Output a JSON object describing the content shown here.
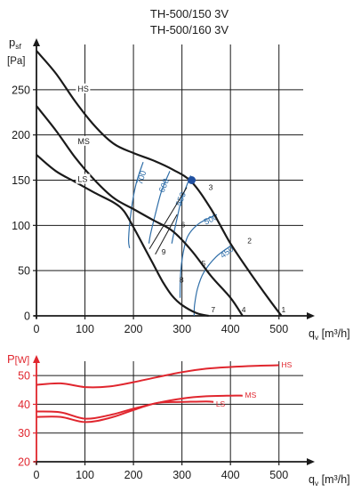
{
  "titles": [
    "TH-500/150 3V",
    "TH-500/160 3V"
  ],
  "colors": {
    "axis": "#1a1a1a",
    "grid": "#1a1a1a",
    "curve": "#1a1a1a",
    "iso_line": "#2f6ea8",
    "iso_label": "#2f6ea8",
    "power_curve": "#e0262e",
    "power_axis": "#e0262e",
    "point": "#1f4fa0"
  },
  "chart_data": [
    {
      "type": "line",
      "id": "pressure",
      "ylabel_main": "p",
      "ylabel_sub": "sf",
      "yunit": "[Pa]",
      "xlabel_main": "q",
      "xlabel_sub": "v",
      "xunit": " [m³/h]",
      "xlim": [
        0,
        550
      ],
      "ylim": [
        0,
        300
      ],
      "xticks": [
        0,
        100,
        200,
        300,
        400,
        500
      ],
      "yticks": [
        0,
        50,
        100,
        150,
        200,
        250
      ],
      "grid": true,
      "series": [
        {
          "name": "HS",
          "points": [
            [
              0,
              293
            ],
            [
              40,
              268
            ],
            [
              80,
              237
            ],
            [
              120,
              210
            ],
            [
              160,
              190
            ],
            [
              200,
              180
            ],
            [
              240,
              172
            ],
            [
              280,
              162
            ],
            [
              320,
              148
            ],
            [
              360,
              118
            ],
            [
              400,
              80
            ],
            [
              440,
              48
            ],
            [
              480,
              18
            ],
            [
              505,
              0
            ]
          ],
          "label_at": [
            85,
            250
          ]
        },
        {
          "name": "MS",
          "points": [
            [
              0,
              232
            ],
            [
              40,
              205
            ],
            [
              80,
              175
            ],
            [
              120,
              150
            ],
            [
              160,
              130
            ],
            [
              200,
              118
            ],
            [
              240,
              106
            ],
            [
              280,
              94
            ],
            [
              320,
              72
            ],
            [
              360,
              44
            ],
            [
              400,
              20
            ],
            [
              425,
              0
            ]
          ],
          "label_at": [
            85,
            192
          ]
        },
        {
          "name": "LS",
          "points": [
            [
              0,
              178
            ],
            [
              40,
              160
            ],
            [
              80,
              148
            ],
            [
              120,
              136
            ],
            [
              160,
              125
            ],
            [
              180,
              116
            ],
            [
              200,
              98
            ],
            [
              220,
              78
            ],
            [
              240,
              58
            ],
            [
              260,
              38
            ],
            [
              280,
              22
            ],
            [
              300,
              12
            ],
            [
              330,
              3
            ],
            [
              355,
              0
            ]
          ],
          "label_at": [
            85,
            150
          ]
        }
      ],
      "iso_lines": [
        {
          "label": "700",
          "points": [
            [
              220,
              170
            ],
            [
              205,
              145
            ],
            [
              195,
              115
            ],
            [
              190,
              85
            ],
            [
              192,
              75
            ]
          ],
          "label_at": [
            222,
            152
          ]
        },
        {
          "label": "600",
          "points": [
            [
              275,
              160
            ],
            [
              258,
              138
            ],
            [
              245,
              112
            ],
            [
              235,
              90
            ],
            [
              232,
              80
            ]
          ],
          "label_at": [
            268,
            143
          ]
        },
        {
          "label": "550",
          "points": [
            [
              318,
              155
            ],
            [
              300,
              130
            ],
            [
              290,
              108
            ],
            [
              282,
              88
            ],
            [
              279,
              80
            ]
          ],
          "label_at": [
            303,
            128
          ]
        },
        {
          "label": "500",
          "points": [
            [
              372,
              112
            ],
            [
              335,
              102
            ],
            [
              312,
              88
            ],
            [
              302,
              68
            ],
            [
              297,
              45
            ],
            [
              296,
              20
            ]
          ],
          "label_at": [
            362,
            104
          ]
        },
        {
          "label": "450",
          "points": [
            [
              402,
              78
            ],
            [
              370,
              65
            ],
            [
              345,
              48
            ],
            [
              332,
              30
            ],
            [
              326,
              12
            ],
            [
              325,
              0
            ]
          ],
          "label_at": [
            396,
            68
          ]
        }
      ],
      "diagonals": [
        {
          "points": [
            [
              310,
              142
            ],
            [
              233,
              74
            ]
          ]
        },
        {
          "points": [
            [
              290,
              112
            ],
            [
              245,
              68
            ]
          ]
        }
      ],
      "point_labels": [
        {
          "label": "1",
          "at": [
            505,
            4
          ]
        },
        {
          "label": "2",
          "at": [
            435,
            80
          ]
        },
        {
          "label": "3",
          "at": [
            355,
            139
          ]
        },
        {
          "label": "4",
          "at": [
            423,
            4
          ]
        },
        {
          "label": "5",
          "at": [
            340,
            55
          ]
        },
        {
          "label": "6",
          "at": [
            298,
            98
          ]
        },
        {
          "label": "7",
          "at": [
            360,
            4
          ]
        },
        {
          "label": "8",
          "at": [
            295,
            37
          ]
        },
        {
          "label": "9",
          "at": [
            258,
            68
          ]
        }
      ],
      "marker": {
        "x": 320,
        "y": 150
      }
    },
    {
      "type": "line",
      "id": "power",
      "ylabel_main": "P",
      "yunit": "[W]",
      "xlabel_main": "q",
      "xlabel_sub": "v",
      "xunit": " [m³/h]",
      "xlim": [
        0,
        550
      ],
      "ylim": [
        20,
        55
      ],
      "xticks": [
        0,
        100,
        200,
        300,
        400,
        500
      ],
      "yticks": [
        20,
        30,
        40,
        50
      ],
      "grid": true,
      "series": [
        {
          "name": "HS",
          "points": [
            [
              0,
              46.8
            ],
            [
              50,
              47.3
            ],
            [
              100,
              46.0
            ],
            [
              150,
              46.2
            ],
            [
              200,
              47.7
            ],
            [
              250,
              49.5
            ],
            [
              300,
              51.2
            ],
            [
              350,
              52.4
            ],
            [
              400,
              53.0
            ],
            [
              450,
              53.4
            ],
            [
              500,
              53.6
            ]
          ],
          "label_at": [
            505,
            53.8
          ]
        },
        {
          "name": "MS",
          "points": [
            [
              0,
              37.5
            ],
            [
              50,
              37.2
            ],
            [
              100,
              35.0
            ],
            [
              150,
              36.2
            ],
            [
              200,
              38.5
            ],
            [
              250,
              40.5
            ],
            [
              300,
              42.0
            ],
            [
              350,
              42.8
            ],
            [
              400,
              43.0
            ],
            [
              425,
              43.0
            ]
          ],
          "label_at": [
            430,
            43.3
          ]
        },
        {
          "name": "LS",
          "points": [
            [
              0,
              35.6
            ],
            [
              50,
              35.6
            ],
            [
              100,
              33.8
            ],
            [
              150,
              35.2
            ],
            [
              200,
              38.0
            ],
            [
              250,
              40.5
            ],
            [
              300,
              40.8
            ],
            [
              350,
              41.0
            ],
            [
              365,
              40.8
            ]
          ],
          "label_at": [
            370,
            40.2
          ]
        }
      ]
    }
  ]
}
